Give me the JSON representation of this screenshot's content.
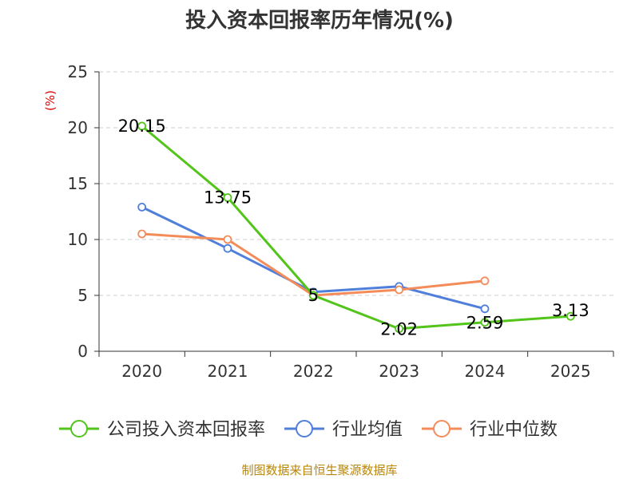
{
  "chart_data": {
    "type": "line",
    "title": "投入资本回报率历年情况(%)",
    "ylabel": "(%)",
    "xlabel": "",
    "categories": [
      "2020",
      "2021",
      "2022",
      "2023",
      "2024",
      "2025"
    ],
    "ylim": [
      0,
      25
    ],
    "yticks": [
      0,
      5,
      10,
      15,
      20,
      25
    ],
    "grid": true,
    "legend_position": "bottom",
    "series": [
      {
        "name": "公司投入资本回报率",
        "color": "#52c41a",
        "values": [
          20.15,
          13.75,
          5,
          2.02,
          2.59,
          3.13
        ],
        "labels": [
          "20.15",
          "13.75",
          "5",
          "2.02",
          "2.59",
          "3.13"
        ]
      },
      {
        "name": "行业均值",
        "color": "#4f7fdb",
        "values": [
          12.9,
          9.2,
          5.3,
          5.8,
          3.8,
          null
        ]
      },
      {
        "name": "行业中位数",
        "color": "#f48c5a",
        "values": [
          10.5,
          10.0,
          5.0,
          5.5,
          6.3,
          null
        ]
      }
    ],
    "source": "制图数据来自恒生聚源数据库"
  }
}
